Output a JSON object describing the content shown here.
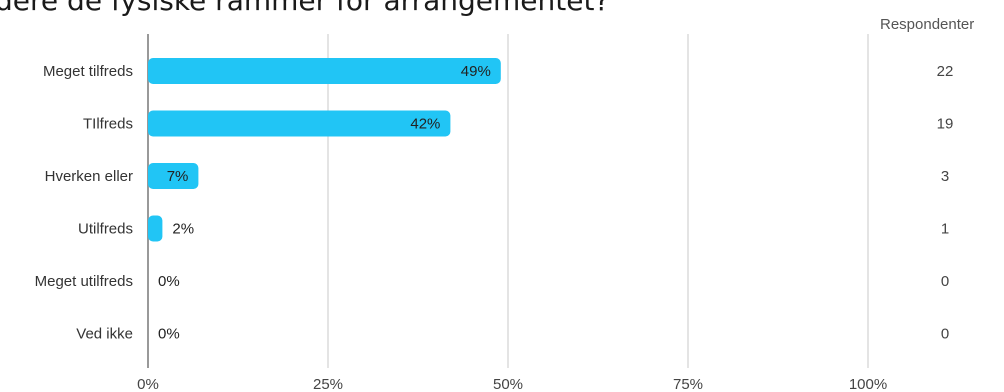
{
  "title": "rdere de fysiske rammer for arrangementet?",
  "respondents_header": "Respondenter",
  "colors": {
    "bar": "#21c5f5",
    "grid": "#c8c8c8",
    "axis": "#999999"
  },
  "chart_data": {
    "type": "bar",
    "orientation": "horizontal",
    "categories": [
      "Meget tilfreds",
      "TIlfreds",
      "Hverken eller",
      "Utilfreds",
      "Meget utilfreds",
      "Ved ikke"
    ],
    "values": [
      49,
      42,
      7,
      2,
      0,
      0
    ],
    "value_labels": [
      "49%",
      "42%",
      "7%",
      "2%",
      "0%",
      "0%"
    ],
    "respondents": [
      22,
      19,
      3,
      1,
      0,
      0
    ],
    "xlim": [
      0,
      100
    ],
    "xticks": [
      0,
      25,
      50,
      75,
      100
    ],
    "xtick_labels": [
      "0%",
      "25%",
      "50%",
      "75%",
      "100%"
    ],
    "grid": true
  }
}
